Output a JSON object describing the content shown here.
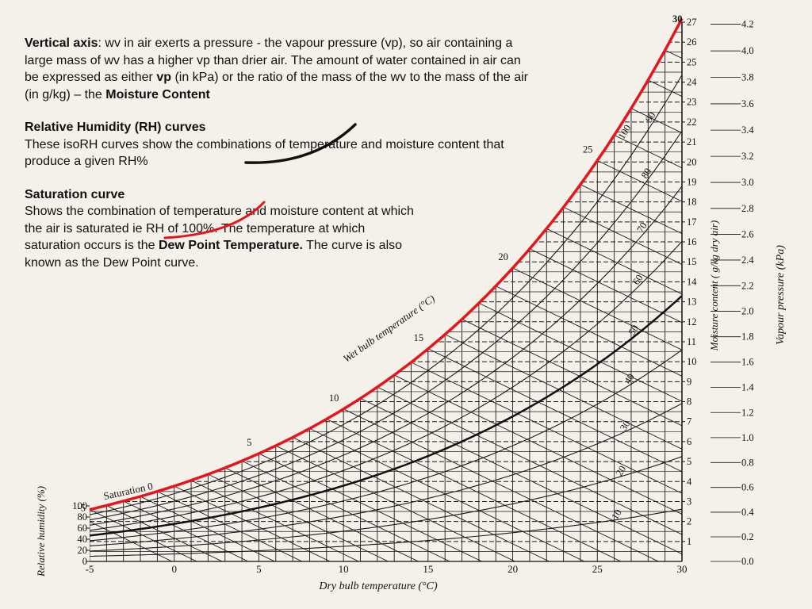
{
  "notes": {
    "p1": {
      "head": "Vertical axis",
      "text1": ": wv in air exerts a pressure - the vapour pressure (vp), so air containing a large mass of wv has a higher vp than drier air.  The amount of water contained in air can be expressed as either ",
      "vp": "vp",
      "text2": " (in kPa) or the ratio of the mass of the wv to the mass of the air (in g/kg) – the ",
      "mc": "Moisture Content"
    },
    "p2": {
      "head": "Relative Humidity (RH) curves",
      "text": "These isoRH curves show the combinations of temperature and moisture content that produce a given RH%"
    },
    "p3": {
      "head": "Saturation curve",
      "text1": "Shows the combination of temperature and moisture content at which the air is saturated ie RH of 100%. The temperature at which saturation occurs is the ",
      "dew": "Dew Point Temperature.",
      "text2": " The curve is also known as the Dew Point curve."
    }
  },
  "chart_data": {
    "type": "psychrometric",
    "xlabel": "Dry bulb temperature (°C)",
    "x_ticks": [
      "-5",
      "0",
      "5",
      "10",
      "15",
      "20",
      "25",
      "30"
    ],
    "xlim": [
      -5,
      30
    ],
    "moisture_label": "Moisture content ( g/kg dry air)",
    "moisture_ticks": [
      "1",
      "2",
      "3",
      "4",
      "5",
      "6",
      "7",
      "8",
      "9",
      "10",
      "11",
      "12",
      "13",
      "14",
      "15",
      "16",
      "17",
      "18",
      "19",
      "20",
      "21",
      "22",
      "23",
      "24",
      "25",
      "26",
      "27"
    ],
    "moisture_lim": [
      0,
      27
    ],
    "vp_label": "Vapour pressure (kPa)",
    "vp_ticks": [
      "0.0",
      "0.2",
      "0.4",
      "0.6",
      "0.8",
      "1.0",
      "1.2",
      "1.4",
      "1.6",
      "1.8",
      "2.0",
      "2.2",
      "2.4",
      "2.6",
      "2.8",
      "3.0",
      "3.2",
      "3.4",
      "3.6",
      "3.8",
      "4.0",
      "4.2"
    ],
    "rh_label": "Relative humidity (%)",
    "rh_ticks": [
      "0",
      "20",
      "40",
      "60",
      "80",
      "100"
    ],
    "rh_curves": [
      "10",
      "20",
      "30",
      "40",
      "50",
      "60",
      "70",
      "80",
      "90",
      "100"
    ],
    "wet_bulb_label": "Wet bulb temperature (°C)",
    "wet_bulb_ticks": [
      "Saturation 0",
      "-5",
      "5",
      "10",
      "15",
      "20",
      "25",
      "30"
    ],
    "colors": {
      "saturation": "#e8141c",
      "rh50": "#111111",
      "grid": "#1a1a1a",
      "annotation": "#e8141c",
      "annotation_dark": "#111111"
    }
  }
}
